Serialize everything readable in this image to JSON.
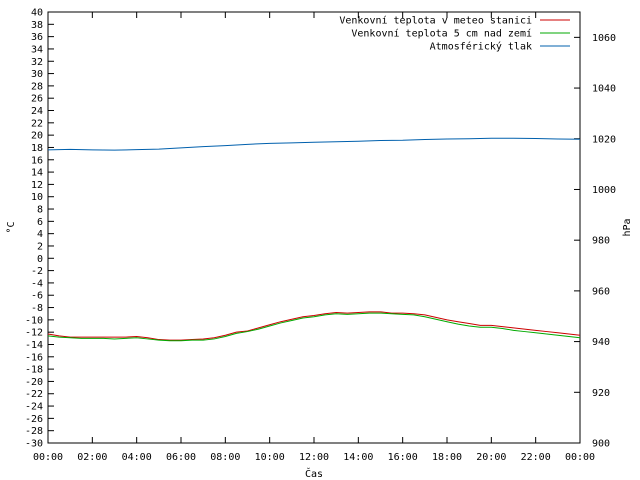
{
  "chart_data": {
    "type": "line",
    "title": "",
    "xlabel": "Čas",
    "ylabel": "°C",
    "y2label": "hPa",
    "xlim": [
      0,
      24
    ],
    "ylim": [
      -30,
      40
    ],
    "y2lim": [
      900,
      1070
    ],
    "x_ticks": [
      "00:00",
      "02:00",
      "04:00",
      "06:00",
      "08:00",
      "10:00",
      "12:00",
      "14:00",
      "16:00",
      "18:00",
      "20:00",
      "22:00",
      "00:00"
    ],
    "y_ticks": [
      40,
      38,
      36,
      34,
      32,
      30,
      28,
      26,
      24,
      22,
      20,
      18,
      16,
      14,
      12,
      10,
      8,
      6,
      4,
      2,
      0,
      -2,
      -4,
      -6,
      -8,
      -10,
      -12,
      -14,
      -16,
      -18,
      -20,
      -22,
      -24,
      -26,
      -28,
      -30
    ],
    "y2_ticks": [
      1060,
      1040,
      1020,
      1000,
      980,
      960,
      940,
      920,
      900
    ],
    "legend_position": "top-right",
    "grid": false,
    "series": [
      {
        "name": "Venkovní teplota v meteo stanici",
        "axis": "y",
        "color": "#cc0000",
        "x": [
          0,
          0.5,
          1,
          1.5,
          2,
          2.5,
          3,
          3.5,
          4,
          4.5,
          5,
          5.5,
          6,
          6.5,
          7,
          7.5,
          8,
          8.5,
          9,
          9.5,
          10,
          10.5,
          11,
          11.5,
          12,
          12.5,
          13,
          13.5,
          14,
          14.5,
          15,
          15.5,
          16,
          16.5,
          17,
          17.5,
          18,
          18.5,
          19,
          19.5,
          20,
          20.5,
          21,
          21.5,
          22,
          22.5,
          23,
          23.5,
          24
        ],
        "values": [
          -12.3,
          -12.6,
          -12.8,
          -12.8,
          -12.8,
          -12.8,
          -12.8,
          -12.8,
          -12.7,
          -12.9,
          -13.2,
          -13.3,
          -13.3,
          -13.2,
          -13.1,
          -12.9,
          -12.5,
          -12.0,
          -11.8,
          -11.3,
          -10.8,
          -10.3,
          -9.9,
          -9.5,
          -9.3,
          -9.0,
          -8.8,
          -8.9,
          -8.8,
          -8.7,
          -8.7,
          -8.9,
          -8.9,
          -9.0,
          -9.2,
          -9.6,
          -10.0,
          -10.3,
          -10.6,
          -10.9,
          -10.9,
          -11.1,
          -11.3,
          -11.5,
          -11.7,
          -11.9,
          -12.1,
          -12.3,
          -12.5
        ]
      },
      {
        "name": "Venkovní teplota 5 cm nad zemí",
        "axis": "y",
        "color": "#00aa00",
        "x": [
          0,
          0.5,
          1,
          1.5,
          2,
          2.5,
          3,
          3.5,
          4,
          4.5,
          5,
          5.5,
          6,
          6.5,
          7,
          7.5,
          8,
          8.5,
          9,
          9.5,
          10,
          10.5,
          11,
          11.5,
          12,
          12.5,
          13,
          13.5,
          14,
          14.5,
          15,
          15.5,
          16,
          16.5,
          17,
          17.5,
          18,
          18.5,
          19,
          19.5,
          20,
          20.5,
          21,
          21.5,
          22,
          22.5,
          23,
          23.5,
          24
        ],
        "values": [
          -12.6,
          -12.8,
          -12.9,
          -13.0,
          -13.0,
          -13.0,
          -13.1,
          -13.0,
          -12.9,
          -13.1,
          -13.3,
          -13.4,
          -13.4,
          -13.3,
          -13.3,
          -13.1,
          -12.7,
          -12.2,
          -11.9,
          -11.5,
          -11.0,
          -10.5,
          -10.1,
          -9.7,
          -9.5,
          -9.2,
          -9.0,
          -9.1,
          -9.0,
          -8.9,
          -8.9,
          -9.0,
          -9.1,
          -9.2,
          -9.5,
          -9.9,
          -10.3,
          -10.7,
          -11.0,
          -11.2,
          -11.2,
          -11.4,
          -11.7,
          -11.9,
          -12.1,
          -12.3,
          -12.5,
          -12.7,
          -12.9
        ]
      },
      {
        "name": "Atmosférický tlak",
        "axis": "y2",
        "color": "#0060ad",
        "x": [
          0,
          1,
          2,
          3,
          4,
          5,
          6,
          7,
          8,
          9,
          10,
          11,
          12,
          13,
          14,
          15,
          16,
          17,
          18,
          19,
          20,
          21,
          22,
          23,
          24
        ],
        "values": [
          1015.6,
          1015.8,
          1015.6,
          1015.5,
          1015.7,
          1015.9,
          1016.4,
          1016.9,
          1017.3,
          1017.8,
          1018.2,
          1018.4,
          1018.6,
          1018.8,
          1019.0,
          1019.3,
          1019.4,
          1019.7,
          1019.9,
          1020.0,
          1020.2,
          1020.2,
          1020.1,
          1019.9,
          1019.8
        ]
      }
    ]
  }
}
